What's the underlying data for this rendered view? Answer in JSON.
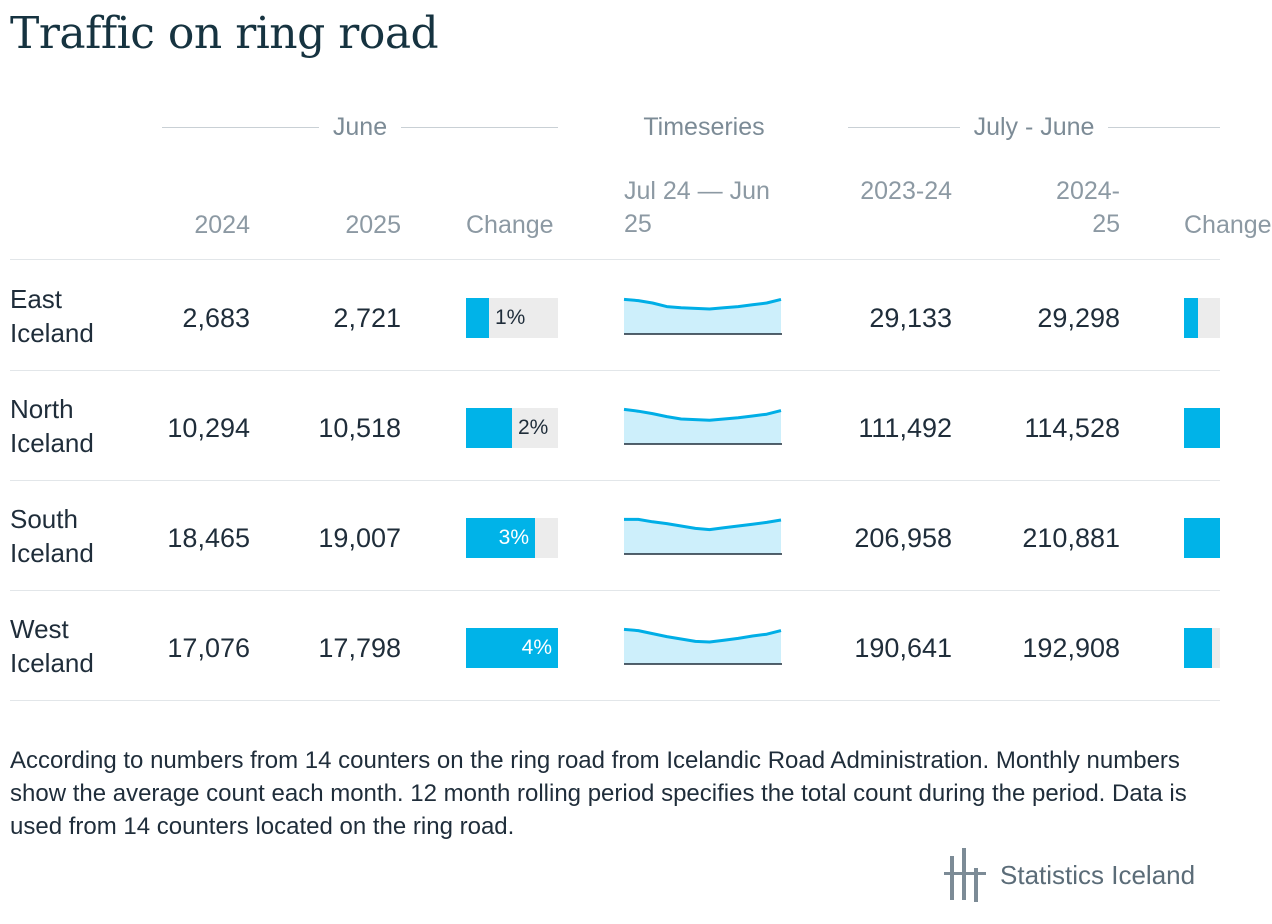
{
  "title": "Traffic on ring road",
  "groups": {
    "june": "June",
    "timeseries": "Timeseries",
    "july_june": "July - June"
  },
  "columns": {
    "june_2024": "2024",
    "june_2025": "2025",
    "june_change": "Change",
    "timeseries": "Jul 24 — Jun 25",
    "jj_2023_24": "2023-24",
    "jj_2024_25": "2024-25",
    "jj_change": "Change"
  },
  "colors": {
    "bar": "#00b3e8",
    "bar_track": "#ececec",
    "spark_line": "#00aee6",
    "spark_fill": "#cdeffb"
  },
  "chart_data": {
    "type": "table",
    "rows": [
      {
        "region": "East Iceland",
        "june_2024": "2,683",
        "june_2025": "2,721",
        "june_change_label": "1%",
        "june_change_value": 1,
        "jj_2023_24": "29,133",
        "jj_2024_25": "29,298",
        "jj_change_value": 0.6,
        "timeseries": [
          28,
          27,
          25,
          22,
          21,
          20.5,
          20,
          21,
          22,
          23.5,
          25,
          28
        ]
      },
      {
        "region": "North Iceland",
        "june_2024": "10,294",
        "june_2025": "10,518",
        "june_change_label": "2%",
        "june_change_value": 2,
        "jj_2023_24": "111,492",
        "jj_2024_25": "114,528",
        "jj_change_value": 2.7,
        "timeseries": [
          28,
          26.5,
          24.5,
          22,
          20,
          19.5,
          19,
          20,
          21,
          22.5,
          24,
          27
        ]
      },
      {
        "region": "South Iceland",
        "june_2024": "18,465",
        "june_2025": "19,007",
        "june_change_label": "3%",
        "june_change_value": 3,
        "jj_2023_24": "206,958",
        "jj_2024_25": "210,881",
        "jj_change_value": 1.9,
        "timeseries": [
          28,
          28,
          26,
          24.5,
          22.5,
          20.5,
          19.5,
          21,
          22.5,
          24,
          25.5,
          27.5
        ]
      },
      {
        "region": "West Iceland",
        "june_2024": "17,076",
        "june_2025": "17,798",
        "june_change_label": "4%",
        "june_change_value": 4,
        "jj_2023_24": "190,641",
        "jj_2024_25": "192,908",
        "jj_change_value": 1.2,
        "timeseries": [
          28,
          27,
          24.5,
          22,
          20,
          18,
          17.5,
          19,
          20.5,
          22.5,
          24,
          27
        ]
      }
    ],
    "bar_max_percent": 4
  },
  "footnote": "According to numbers from 14 counters on the ring road from Icelandic Road Administration. Monthly numbers show the average count each month. 12 month rolling period specifies the total count during the period. Data is used from 14 counters located on the ring road.",
  "logo": {
    "text": "Statistics Iceland",
    "icon": "statistics-iceland-logo-icon"
  }
}
